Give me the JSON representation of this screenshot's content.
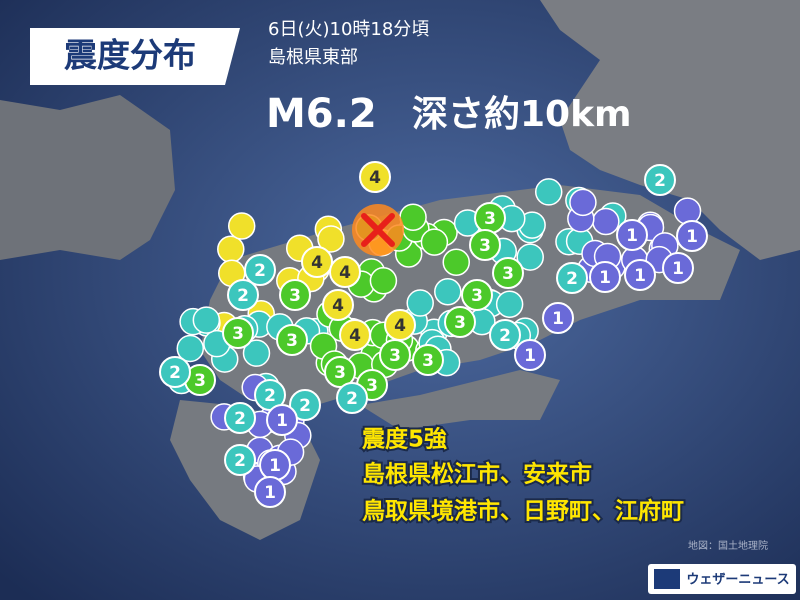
{
  "header": {
    "title": "震度分布",
    "time": "6日(火)10時18分頃",
    "region": "島根県東部",
    "magnitude": "M6.2",
    "depth": "深さ約10km"
  },
  "markers": [
    4,
    3,
    3,
    3,
    2,
    2,
    1,
    1,
    1,
    1,
    1,
    1,
    1,
    2,
    3,
    4,
    4,
    4,
    3,
    3,
    3,
    2,
    2,
    4,
    4,
    3,
    3,
    3,
    3,
    3,
    2,
    2,
    2,
    2,
    1,
    2,
    2,
    1,
    1,
    3
  ],
  "summary": {
    "intensity": "震度5強",
    "line1": "島根県松江市、安来市",
    "line2": "鳥取県境港市、日野町、江府町"
  },
  "credit": "地図：国土地理院",
  "brand": "ウェザーニュース"
}
